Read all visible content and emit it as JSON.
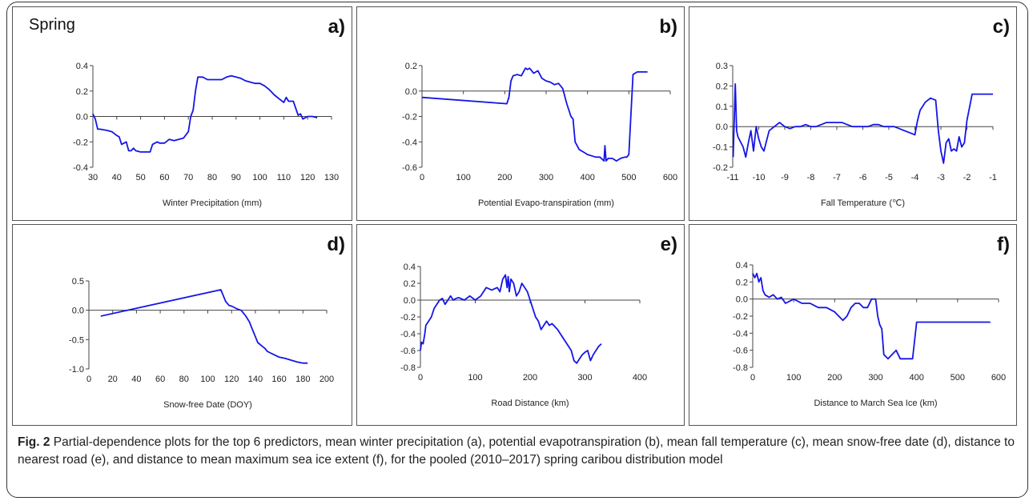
{
  "figure_tag": "Spring",
  "caption": {
    "fig_label": "Fig. 2",
    "text": " Partial-dependence plots for the top 6 predictors, mean winter precipitation (a), potential evapotranspiration (b), mean fall temperature (c), mean snow-free date (d), distance to nearest road (e), and distance to mean maximum sea ice extent (f), for the pooled (2010–2017) spring caribou distribution model"
  },
  "colors": {
    "line": "#1515e6",
    "axis": "#444444"
  },
  "chart_data": [
    {
      "id": "a",
      "panel_label": "a)",
      "type": "line",
      "xlabel": "Winter Precipitation (mm)",
      "ylabel": "",
      "xlim": [
        30,
        130
      ],
      "ylim": [
        -0.4,
        0.4
      ],
      "xticks": [
        30,
        40,
        50,
        60,
        70,
        80,
        90,
        100,
        110,
        120,
        130
      ],
      "yticks": [
        -0.4,
        -0.2,
        0.0,
        0.2,
        0.4
      ],
      "ytick_labels": [
        "-0.4",
        "-0.2",
        "0.0",
        "0.2",
        "0.4"
      ],
      "series": [
        {
          "x": [
            30,
            31,
            32,
            33,
            36,
            38,
            40,
            41,
            42,
            44,
            45,
            46,
            47,
            48,
            50,
            52,
            54,
            55,
            56,
            57,
            58,
            60,
            62,
            64,
            66,
            68,
            70,
            71,
            72,
            73,
            74,
            76,
            78,
            80,
            82,
            84,
            86,
            88,
            90,
            92,
            94,
            96,
            98,
            100,
            102,
            104,
            106,
            108,
            110,
            111,
            112,
            114,
            116,
            117,
            118,
            120,
            122,
            124
          ],
          "y": [
            0.02,
            -0.02,
            -0.1,
            -0.1,
            -0.11,
            -0.12,
            -0.15,
            -0.16,
            -0.22,
            -0.2,
            -0.27,
            -0.27,
            -0.25,
            -0.27,
            -0.28,
            -0.28,
            -0.28,
            -0.22,
            -0.21,
            -0.2,
            -0.21,
            -0.21,
            -0.18,
            -0.19,
            -0.18,
            -0.17,
            -0.12,
            0.0,
            0.05,
            0.2,
            0.31,
            0.31,
            0.29,
            0.29,
            0.29,
            0.29,
            0.31,
            0.32,
            0.31,
            0.3,
            0.28,
            0.27,
            0.26,
            0.26,
            0.24,
            0.21,
            0.17,
            0.14,
            0.11,
            0.15,
            0.12,
            0.12,
            0.01,
            0.02,
            -0.02,
            0.0,
            0.0,
            -0.01
          ]
        }
      ]
    },
    {
      "id": "b",
      "panel_label": "b)",
      "type": "line",
      "xlabel": "Potential Evapo-transpiration (mm)",
      "ylabel": "",
      "xlim": [
        0,
        600
      ],
      "ylim": [
        -0.6,
        0.2
      ],
      "xticks": [
        0,
        100,
        200,
        300,
        400,
        500,
        600
      ],
      "yticks": [
        -0.6,
        -0.4,
        -0.2,
        0.0,
        0.2
      ],
      "ytick_labels": [
        "-0.6",
        "-0.4",
        "-0.2",
        "0.0",
        "0.2"
      ],
      "series": [
        {
          "x": [
            0,
            205,
            210,
            215,
            220,
            230,
            240,
            250,
            255,
            260,
            270,
            280,
            290,
            300,
            310,
            320,
            330,
            340,
            350,
            360,
            365,
            370,
            380,
            390,
            400,
            410,
            420,
            430,
            440,
            442,
            445,
            450,
            460,
            470,
            480,
            490,
            495,
            500,
            510,
            520,
            545
          ],
          "y": [
            -0.05,
            -0.1,
            -0.05,
            0.08,
            0.12,
            0.13,
            0.12,
            0.18,
            0.17,
            0.18,
            0.14,
            0.16,
            0.1,
            0.08,
            0.07,
            0.05,
            0.06,
            0.02,
            -0.1,
            -0.2,
            -0.22,
            -0.4,
            -0.46,
            -0.48,
            -0.5,
            -0.51,
            -0.52,
            -0.52,
            -0.55,
            -0.43,
            -0.55,
            -0.53,
            -0.53,
            -0.55,
            -0.53,
            -0.52,
            -0.52,
            -0.5,
            0.13,
            0.15,
            0.15
          ]
        }
      ]
    },
    {
      "id": "c",
      "panel_label": "c)",
      "type": "line",
      "xlabel": "Fall Temperature (℃)",
      "ylabel": "",
      "xlim": [
        -11,
        -1
      ],
      "ylim": [
        -0.2,
        0.3
      ],
      "xticks": [
        -11,
        -10,
        -9,
        -8,
        -7,
        -6,
        -5,
        -4,
        -3,
        -2,
        -1
      ],
      "yticks": [
        -0.2,
        -0.1,
        0.0,
        0.1,
        0.2,
        0.3
      ],
      "ytick_labels": [
        "-0.2",
        "-0.1",
        "0.0",
        "0.1",
        "0.2",
        "0.3"
      ],
      "series": [
        {
          "x": [
            -10.98,
            -10.9,
            -10.85,
            -10.8,
            -10.6,
            -10.5,
            -10.4,
            -10.3,
            -10.2,
            -10.1,
            -10.0,
            -9.9,
            -9.8,
            -9.6,
            -9.4,
            -9.2,
            -9.0,
            -8.8,
            -8.6,
            -8.4,
            -8.2,
            -8.0,
            -7.8,
            -7.6,
            -7.4,
            -7.2,
            -7.0,
            -6.8,
            -6.6,
            -6.4,
            -6.2,
            -6.0,
            -5.8,
            -5.6,
            -5.4,
            -5.2,
            -5.0,
            -4.8,
            -4.6,
            -4.4,
            -4.2,
            -4.0,
            -3.9,
            -3.8,
            -3.6,
            -3.4,
            -3.2,
            -3.1,
            -3.0,
            -2.9,
            -2.8,
            -2.7,
            -2.6,
            -2.5,
            -2.4,
            -2.3,
            -2.2,
            -2.1,
            -2.0,
            -1.8,
            -1.6,
            -1.4,
            -1.2,
            -1.0
          ],
          "y": [
            -0.15,
            0.21,
            -0.02,
            -0.05,
            -0.1,
            -0.15,
            -0.08,
            -0.02,
            -0.12,
            0.0,
            -0.06,
            -0.1,
            -0.12,
            -0.02,
            0.0,
            0.02,
            0.0,
            -0.01,
            0.0,
            0.0,
            0.01,
            0.0,
            0.0,
            0.01,
            0.02,
            0.02,
            0.02,
            0.02,
            0.01,
            0.0,
            0.0,
            0.0,
            0.0,
            0.01,
            0.01,
            0.0,
            0.0,
            0.0,
            -0.01,
            -0.02,
            -0.03,
            -0.04,
            0.03,
            0.08,
            0.12,
            0.14,
            0.13,
            -0.02,
            -0.12,
            -0.18,
            -0.08,
            -0.06,
            -0.12,
            -0.11,
            -0.12,
            -0.05,
            -0.1,
            -0.08,
            0.03,
            0.16,
            0.16,
            0.16,
            0.16,
            0.16
          ]
        }
      ]
    },
    {
      "id": "d",
      "panel_label": "d)",
      "type": "line",
      "xlabel": "Snow-free Date (DOY)",
      "ylabel": "",
      "xlim": [
        0,
        200
      ],
      "ylim": [
        -1.0,
        0.5
      ],
      "xticks": [
        0,
        20,
        40,
        60,
        80,
        100,
        120,
        140,
        160,
        180,
        200
      ],
      "yticks": [
        -1.0,
        -0.5,
        0.0,
        0.5
      ],
      "ytick_labels": [
        "-1.0",
        "-0.5",
        "0.0",
        "0.5"
      ],
      "series": [
        {
          "x": [
            10,
            111,
            113,
            115,
            118,
            120,
            122,
            125,
            128,
            130,
            132,
            135,
            137,
            140,
            142,
            145,
            148,
            150,
            152,
            155,
            160,
            165,
            170,
            175,
            180,
            184
          ],
          "y": [
            -0.1,
            0.35,
            0.25,
            0.15,
            0.08,
            0.07,
            0.05,
            0.02,
            0.0,
            -0.05,
            -0.1,
            -0.2,
            -0.3,
            -0.45,
            -0.55,
            -0.6,
            -0.65,
            -0.7,
            -0.72,
            -0.75,
            -0.8,
            -0.82,
            -0.85,
            -0.88,
            -0.9,
            -0.9
          ]
        }
      ]
    },
    {
      "id": "e",
      "panel_label": "e)",
      "type": "line",
      "xlabel": "Road Distance (km)",
      "ylabel": "",
      "xlim": [
        0,
        400
      ],
      "ylim": [
        -0.8,
        0.4
      ],
      "xticks": [
        0,
        100,
        200,
        300,
        400
      ],
      "yticks": [
        -0.8,
        -0.6,
        -0.4,
        -0.2,
        0.0,
        0.2,
        0.4
      ],
      "ytick_labels": [
        "-0.8",
        "-0.6",
        "-0.4",
        "-0.2",
        "0.0",
        "0.2",
        "0.4"
      ],
      "series": [
        {
          "x": [
            0,
            2,
            5,
            8,
            10,
            15,
            20,
            25,
            30,
            35,
            40,
            45,
            50,
            55,
            60,
            65,
            70,
            80,
            90,
            100,
            110,
            120,
            130,
            140,
            145,
            150,
            155,
            158,
            160,
            162,
            165,
            170,
            175,
            180,
            185,
            190,
            195,
            200,
            205,
            210,
            215,
            220,
            225,
            230,
            235,
            240,
            250,
            260,
            270,
            275,
            280,
            285,
            290,
            295,
            300,
            305,
            310,
            315,
            320,
            325,
            330
          ],
          "y": [
            -0.6,
            -0.5,
            -0.52,
            -0.4,
            -0.3,
            -0.25,
            -0.2,
            -0.1,
            -0.05,
            0.0,
            0.02,
            -0.05,
            0.0,
            0.05,
            0.0,
            0.02,
            0.03,
            0.0,
            0.05,
            0.0,
            0.05,
            0.15,
            0.12,
            0.15,
            0.1,
            0.25,
            0.3,
            0.15,
            0.28,
            0.1,
            0.25,
            0.2,
            0.05,
            0.1,
            0.2,
            0.15,
            0.1,
            0.0,
            -0.1,
            -0.2,
            -0.25,
            -0.35,
            -0.3,
            -0.25,
            -0.3,
            -0.28,
            -0.35,
            -0.45,
            -0.55,
            -0.6,
            -0.72,
            -0.75,
            -0.7,
            -0.65,
            -0.62,
            -0.6,
            -0.72,
            -0.65,
            -0.6,
            -0.55,
            -0.52
          ]
        }
      ]
    },
    {
      "id": "f",
      "panel_label": "f)",
      "type": "line",
      "xlabel": "Distance to March Sea Ice (km)",
      "ylabel": "",
      "xlim": [
        0,
        600
      ],
      "ylim": [
        -0.8,
        0.4
      ],
      "xticks": [
        0,
        100,
        200,
        300,
        400,
        500,
        600
      ],
      "yticks": [
        -0.8,
        -0.6,
        -0.4,
        -0.2,
        0.0,
        0.2,
        0.4
      ],
      "ytick_labels": [
        "-0.8",
        "-0.6",
        "-0.4",
        "-0.2",
        "0.0",
        "0.2",
        "0.4"
      ],
      "series": [
        {
          "x": [
            0,
            5,
            10,
            15,
            20,
            25,
            30,
            40,
            50,
            60,
            70,
            80,
            100,
            120,
            140,
            160,
            180,
            200,
            210,
            220,
            230,
            240,
            250,
            260,
            270,
            280,
            290,
            300,
            305,
            310,
            315,
            320,
            330,
            340,
            350,
            360,
            370,
            380,
            390,
            400,
            450,
            500,
            550,
            580
          ],
          "y": [
            0.3,
            0.25,
            0.3,
            0.2,
            0.25,
            0.1,
            0.05,
            0.02,
            0.05,
            0.0,
            0.02,
            -0.05,
            0.0,
            -0.05,
            -0.05,
            -0.1,
            -0.1,
            -0.15,
            -0.2,
            -0.25,
            -0.2,
            -0.1,
            -0.05,
            -0.05,
            -0.1,
            -0.1,
            0.0,
            0.0,
            -0.2,
            -0.3,
            -0.35,
            -0.65,
            -0.7,
            -0.65,
            -0.6,
            -0.7,
            -0.7,
            -0.7,
            -0.7,
            -0.27,
            -0.27,
            -0.27,
            -0.27,
            -0.27
          ]
        }
      ]
    }
  ]
}
